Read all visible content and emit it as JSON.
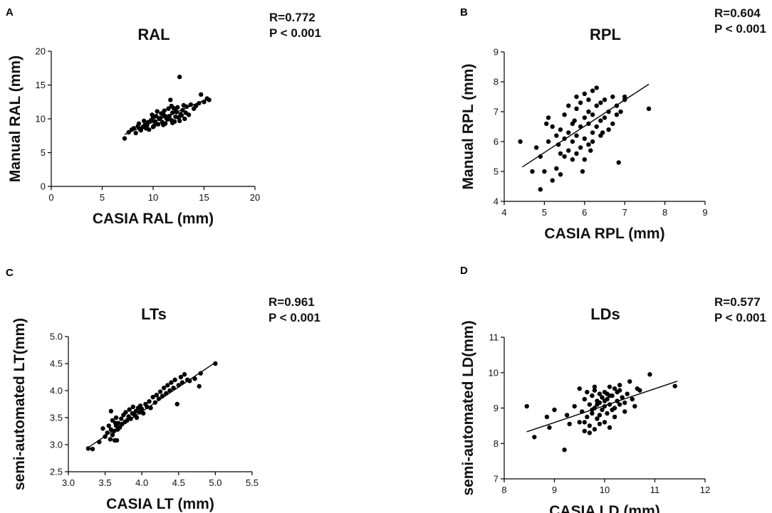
{
  "chart_data": [
    {
      "type": "scatter",
      "panel": "A",
      "title": "RAL",
      "stats": [
        "R=0.772",
        "P < 0.001"
      ],
      "xlabel": "CASIA RAL (mm)",
      "ylabel": "Manual RAL (mm)",
      "xlim": [
        0,
        20
      ],
      "ylim": [
        0,
        20
      ],
      "xticks": [
        "0",
        "5",
        "10",
        "15",
        "20"
      ],
      "yticks": [
        "0",
        "5",
        "10",
        "15",
        "20"
      ],
      "trend": [
        [
          7.2,
          7.7
        ],
        [
          15.4,
          13.0
        ]
      ],
      "x": [
        7.2,
        7.6,
        7.9,
        8.1,
        8.3,
        8.5,
        8.6,
        8.8,
        9.0,
        9.2,
        9.3,
        9.5,
        9.6,
        9.8,
        10.0,
        10.1,
        10.2,
        10.3,
        10.5,
        10.6,
        10.8,
        10.9,
        11.0,
        11.1,
        11.2,
        11.3,
        11.5,
        11.6,
        11.7,
        11.8,
        11.9,
        12.0,
        12.1,
        12.2,
        12.3,
        12.4,
        12.5,
        12.6,
        12.8,
        12.9,
        13.0,
        13.1,
        13.3,
        13.5,
        13.7,
        14.0,
        14.2,
        14.5,
        14.7,
        15.0,
        15.3,
        15.5,
        9.4,
        10.7,
        11.4,
        12.7,
        8.7,
        9.9,
        10.4,
        11.9,
        12.2,
        13.2,
        11.0,
        11.8,
        12.6,
        9.1,
        10.0,
        11.2
      ],
      "y": [
        7.1,
        8.0,
        8.4,
        8.6,
        7.9,
        8.9,
        9.3,
        8.3,
        8.8,
        9.1,
        8.6,
        9.5,
        8.4,
        9.8,
        10.2,
        9.0,
        9.6,
        10.4,
        9.2,
        10.0,
        10.8,
        9.5,
        10.6,
        11.2,
        9.3,
        10.1,
        11.5,
        10.4,
        12.8,
        9.8,
        10.9,
        11.6,
        9.6,
        10.3,
        11.0,
        11.7,
        10.2,
        16.2,
        10.5,
        11.3,
        12.0,
        10.0,
        11.8,
        10.6,
        12.1,
        11.5,
        11.9,
        12.3,
        13.6,
        12.5,
        13.0,
        12.8,
        9.0,
        10.1,
        9.9,
        10.7,
        8.5,
        10.6,
        11.1,
        9.4,
        11.4,
        10.9,
        9.1,
        11.9,
        9.7,
        9.7,
        8.8,
        10.4
      ]
    },
    {
      "type": "scatter",
      "panel": "B",
      "title": "RPL",
      "stats": [
        "R=0.604",
        "P < 0.001"
      ],
      "xlabel": "CASIA RPL (mm)",
      "ylabel": "Manual RPL (mm)",
      "xlim": [
        4,
        9
      ],
      "ylim": [
        4,
        9
      ],
      "xticks": [
        "4",
        "5",
        "6",
        "7",
        "8",
        "9"
      ],
      "yticks": [
        "4",
        "5",
        "6",
        "7",
        "8",
        "9"
      ],
      "trend": [
        [
          4.45,
          5.15
        ],
        [
          7.6,
          7.92
        ]
      ],
      "x": [
        4.4,
        4.7,
        4.8,
        4.9,
        4.9,
        5.0,
        5.1,
        5.1,
        5.2,
        5.2,
        5.3,
        5.3,
        5.4,
        5.4,
        5.4,
        5.5,
        5.5,
        5.5,
        5.6,
        5.6,
        5.6,
        5.7,
        5.7,
        5.7,
        5.8,
        5.8,
        5.8,
        5.8,
        5.9,
        5.9,
        5.9,
        6.0,
        6.0,
        6.0,
        6.0,
        6.1,
        6.1,
        6.1,
        6.1,
        6.2,
        6.2,
        6.2,
        6.2,
        6.3,
        6.3,
        6.3,
        6.4,
        6.4,
        6.4,
        6.5,
        6.5,
        6.6,
        6.6,
        6.7,
        6.7,
        6.8,
        6.8,
        6.9,
        7.0,
        7.0,
        7.6,
        6.85,
        5.05,
        5.35,
        5.75,
        6.15,
        6.45,
        5.95
      ],
      "y": [
        6.0,
        5.0,
        5.8,
        4.4,
        5.5,
        5.0,
        6.8,
        6.0,
        4.7,
        6.5,
        5.1,
        6.2,
        4.9,
        5.6,
        6.4,
        5.5,
        6.1,
        6.9,
        5.7,
        6.3,
        7.2,
        5.4,
        6.0,
        6.6,
        5.6,
        6.2,
        7.1,
        7.5,
        5.8,
        6.5,
        7.3,
        5.4,
        6.1,
        6.8,
        7.6,
        5.9,
        6.6,
        7.0,
        7.4,
        6.3,
        6.9,
        7.7,
        6.0,
        6.5,
        7.2,
        7.8,
        6.7,
        7.3,
        6.2,
        6.8,
        7.4,
        6.4,
        7.0,
        6.6,
        7.5,
        6.9,
        7.2,
        7.0,
        7.5,
        7.4,
        7.1,
        5.3,
        6.6,
        5.9,
        6.7,
        5.7,
        6.3,
        5.0
      ]
    },
    {
      "type": "scatter",
      "panel": "C",
      "title": "LTs",
      "stats": [
        "R=0.961",
        "P < 0.001"
      ],
      "xlabel": "CASIA LT (mm)",
      "ylabel": "semi-automated LT(mm)",
      "xlim": [
        3.0,
        5.5
      ],
      "ylim": [
        2.5,
        5.0
      ],
      "xticks": [
        "3.0",
        "3.5",
        "4.0",
        "4.5",
        "5.0",
        "5.5"
      ],
      "yticks": [
        "2.5",
        "3.0",
        "3.5",
        "4.0",
        "4.5",
        "5.0"
      ],
      "trend": [
        [
          3.25,
          2.93
        ],
        [
          5.0,
          4.52
        ]
      ],
      "x": [
        3.27,
        3.33,
        3.42,
        3.47,
        3.5,
        3.53,
        3.55,
        3.57,
        3.58,
        3.6,
        3.6,
        3.62,
        3.63,
        3.65,
        3.65,
        3.67,
        3.68,
        3.7,
        3.72,
        3.73,
        3.75,
        3.77,
        3.78,
        3.8,
        3.82,
        3.83,
        3.85,
        3.87,
        3.88,
        3.9,
        3.92,
        3.93,
        3.95,
        3.97,
        3.98,
        4.0,
        4.02,
        4.05,
        4.07,
        4.1,
        4.12,
        4.15,
        4.18,
        4.2,
        4.23,
        4.25,
        4.28,
        4.3,
        4.33,
        4.35,
        4.38,
        4.4,
        4.43,
        4.45,
        4.48,
        4.5,
        4.53,
        4.55,
        4.58,
        4.62,
        4.65,
        4.72,
        4.78,
        4.8,
        5.0,
        3.58,
        3.66,
        3.64
      ],
      "y": [
        2.93,
        2.92,
        3.05,
        3.3,
        3.15,
        3.22,
        3.35,
        3.1,
        3.28,
        3.18,
        3.45,
        3.25,
        3.08,
        3.35,
        3.5,
        3.28,
        3.4,
        3.32,
        3.48,
        3.38,
        3.55,
        3.42,
        3.6,
        3.45,
        3.52,
        3.65,
        3.48,
        3.58,
        3.7,
        3.55,
        3.62,
        3.5,
        3.68,
        3.6,
        3.72,
        3.66,
        3.58,
        3.75,
        3.7,
        3.8,
        3.68,
        3.88,
        3.78,
        3.92,
        3.85,
        3.98,
        3.9,
        4.05,
        3.95,
        4.1,
        4.0,
        4.15,
        4.05,
        4.2,
        3.75,
        4.1,
        4.25,
        4.15,
        4.3,
        4.2,
        4.18,
        4.22,
        4.08,
        4.32,
        4.5,
        3.62,
        3.08,
        3.4
      ]
    },
    {
      "type": "scatter",
      "panel": "D",
      "title": "LDs",
      "stats": [
        "R=0.577",
        "P < 0.001"
      ],
      "xlabel": "CASIA LD (mm)",
      "ylabel": "semi-automated LD(mm)",
      "xlim": [
        8,
        12
      ],
      "ylim": [
        7,
        11
      ],
      "xticks": [
        "8",
        "9",
        "10",
        "11",
        "12"
      ],
      "yticks": [
        "7",
        "8",
        "9",
        "10",
        "11"
      ],
      "trend": [
        [
          8.45,
          8.33
        ],
        [
          11.45,
          9.76
        ]
      ],
      "x": [
        8.45,
        8.6,
        8.85,
        8.9,
        9.0,
        9.2,
        9.25,
        9.3,
        9.4,
        9.5,
        9.5,
        9.55,
        9.6,
        9.6,
        9.65,
        9.65,
        9.7,
        9.7,
        9.75,
        9.75,
        9.8,
        9.8,
        9.8,
        9.85,
        9.85,
        9.9,
        9.9,
        9.9,
        9.95,
        9.95,
        10.0,
        10.0,
        10.0,
        10.05,
        10.05,
        10.1,
        10.1,
        10.1,
        10.15,
        10.15,
        10.2,
        10.2,
        10.25,
        10.25,
        10.3,
        10.3,
        10.35,
        10.4,
        10.45,
        10.5,
        10.55,
        10.6,
        10.65,
        10.7,
        10.9,
        11.4,
        9.7,
        9.8,
        10.0,
        10.2,
        9.6,
        10.4,
        9.9,
        10.1,
        10.3,
        9.75,
        9.85,
        10.05
      ],
      "y": [
        9.05,
        8.18,
        8.75,
        8.45,
        8.95,
        7.82,
        8.8,
        8.55,
        9.05,
        8.6,
        9.55,
        8.9,
        8.35,
        9.25,
        8.75,
        9.45,
        8.5,
        9.1,
        8.85,
        9.35,
        8.4,
        9.0,
        9.5,
        8.7,
        9.2,
        8.8,
        9.15,
        9.4,
        8.95,
        9.3,
        8.6,
        9.05,
        9.45,
        8.85,
        9.25,
        8.45,
        9.1,
        9.6,
        8.95,
        9.35,
        9.0,
        9.55,
        9.2,
        9.45,
        9.1,
        9.65,
        9.3,
        8.9,
        9.4,
        9.75,
        9.25,
        9.05,
        9.55,
        9.5,
        9.95,
        9.62,
        8.3,
        9.6,
        9.2,
        8.75,
        8.6,
        9.15,
        8.55,
        9.35,
        9.5,
        8.95,
        9.1,
        9.4
      ]
    }
  ]
}
